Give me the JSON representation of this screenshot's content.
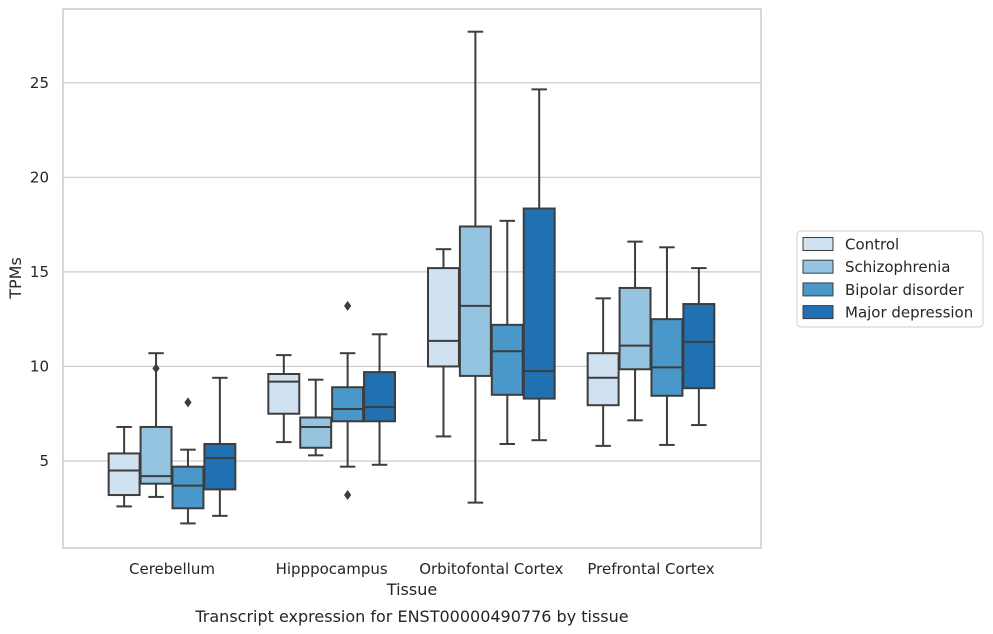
{
  "chart_data": {
    "type": "box",
    "title": "",
    "caption": "Transcript expression for ENST00000490776 by tissue",
    "xlabel": "Tissue",
    "ylabel": "TPMs",
    "ylim": [
      0.4,
      28.9
    ],
    "yticks": [
      5,
      10,
      15,
      20,
      25
    ],
    "grid": "horizontal",
    "legend_position": "right",
    "categories": [
      "Cerebellum",
      "Hipppocampus",
      "Orbitofontal Cortex",
      "Prefrontal Cortex"
    ],
    "series": [
      {
        "name": "Control",
        "color": "#d0e1f2",
        "boxes": [
          {
            "whisker_low": 2.6,
            "q1": 3.2,
            "median": 4.5,
            "q3": 5.4,
            "whisker_high": 6.8,
            "outliers": []
          },
          {
            "whisker_low": 6.0,
            "q1": 7.5,
            "median": 9.2,
            "q3": 9.6,
            "whisker_high": 10.6,
            "outliers": []
          },
          {
            "whisker_low": 6.3,
            "q1": 10.0,
            "median": 11.35,
            "q3": 15.2,
            "whisker_high": 16.2,
            "outliers": []
          },
          {
            "whisker_low": 5.8,
            "q1": 7.95,
            "median": 9.4,
            "q3": 10.7,
            "whisker_high": 13.6,
            "outliers": []
          }
        ]
      },
      {
        "name": "Schizophrenia",
        "color": "#94c4df",
        "boxes": [
          {
            "whisker_low": 3.1,
            "q1": 3.8,
            "median": 4.2,
            "q3": 6.8,
            "whisker_high": 10.7,
            "outliers": [
              9.9
            ]
          },
          {
            "whisker_low": 5.3,
            "q1": 5.7,
            "median": 6.8,
            "q3": 7.3,
            "whisker_high": 9.3,
            "outliers": []
          },
          {
            "whisker_low": 2.8,
            "q1": 9.5,
            "median": 13.2,
            "q3": 17.4,
            "whisker_high": 27.7,
            "outliers": []
          },
          {
            "whisker_low": 7.15,
            "q1": 9.85,
            "median": 11.1,
            "q3": 14.15,
            "whisker_high": 16.6,
            "outliers": []
          }
        ]
      },
      {
        "name": "Bipolar disorder",
        "color": "#4a98c9",
        "boxes": [
          {
            "whisker_low": 1.7,
            "q1": 2.5,
            "median": 3.7,
            "q3": 4.7,
            "whisker_high": 5.6,
            "outliers": [
              8.1
            ]
          },
          {
            "whisker_low": 4.7,
            "q1": 7.1,
            "median": 7.75,
            "q3": 8.9,
            "whisker_high": 10.7,
            "outliers": [
              13.2,
              3.2
            ]
          },
          {
            "whisker_low": 5.9,
            "q1": 8.5,
            "median": 10.8,
            "q3": 12.2,
            "whisker_high": 17.7,
            "outliers": []
          },
          {
            "whisker_low": 5.85,
            "q1": 8.45,
            "median": 9.95,
            "q3": 12.5,
            "whisker_high": 16.3,
            "outliers": []
          }
        ]
      },
      {
        "name": "Major depression",
        "color": "#2070b4",
        "boxes": [
          {
            "whisker_low": 2.1,
            "q1": 3.5,
            "median": 5.15,
            "q3": 5.9,
            "whisker_high": 9.4,
            "outliers": []
          },
          {
            "whisker_low": 4.8,
            "q1": 7.1,
            "median": 7.85,
            "q3": 9.7,
            "whisker_high": 11.7,
            "outliers": []
          },
          {
            "whisker_low": 6.1,
            "q1": 8.3,
            "median": 9.75,
            "q3": 18.35,
            "whisker_high": 24.65,
            "outliers": []
          },
          {
            "whisker_low": 6.9,
            "q1": 8.85,
            "median": 11.3,
            "q3": 13.3,
            "whisker_high": 15.2,
            "outliers": []
          }
        ]
      }
    ]
  }
}
